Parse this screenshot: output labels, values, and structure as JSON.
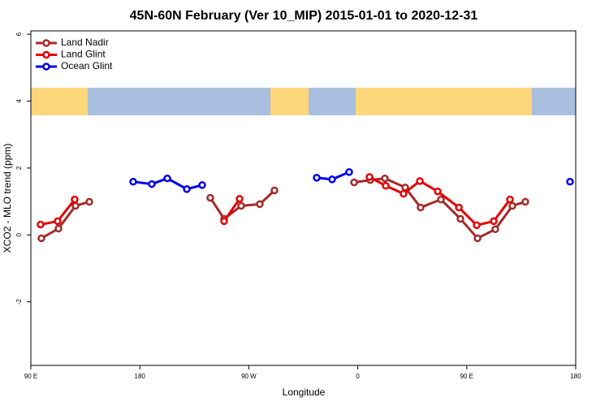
{
  "chart_data": {
    "type": "line",
    "title": "45N-60N February (Ver 10_MIP)   2015-01-01 to 2020-12-31",
    "x_label": "Longitude",
    "y_label": "XCO2 - MLO trend (ppm)",
    "xlim": [
      90,
      540
    ],
    "xticks": [
      {
        "value": 90,
        "label": "90 E"
      },
      {
        "value": 180,
        "label": "180"
      },
      {
        "value": 270,
        "label": "90 W"
      },
      {
        "value": 360,
        "label": "0"
      },
      {
        "value": 450,
        "label": "90 E"
      },
      {
        "value": 540,
        "label": "180"
      }
    ],
    "ylim": [
      -3.9,
      6.1
    ],
    "yticks": [
      -2,
      0,
      2,
      4,
      6
    ],
    "legend": "top-left",
    "series": [
      {
        "name": "Land Nadir",
        "color": "#a52a2a",
        "x": [
          98.7,
          112.8,
          126.9,
          138.3,
          null,
          238.2,
          249.6,
          263.7,
          279.1,
          291.2,
          null,
          357,
          370.3,
          382.4,
          399.2,
          411.9,
          428.7,
          444.8,
          458.9,
          473.6,
          487.7,
          498.4
        ],
        "values": [
          -0.1,
          0.19,
          0.87,
          0.99,
          null,
          1.11,
          0.48,
          0.87,
          0.92,
          1.33,
          null,
          1.57,
          1.64,
          1.69,
          1.42,
          0.82,
          1.06,
          0.48,
          -0.1,
          0.17,
          0.87,
          0.99
        ]
      },
      {
        "name": "Land Glint",
        "color": "#e60000",
        "x": [
          98.0,
          112.1,
          126.2,
          null,
          249.6,
          262.4,
          null,
          369.7,
          383.1,
          397.8,
          411.3,
          426.0,
          443.5,
          458.2,
          472.3,
          485.7
        ],
        "values": [
          0.31,
          0.41,
          1.06,
          null,
          0.41,
          1.08,
          null,
          1.73,
          1.47,
          1.23,
          1.61,
          1.3,
          0.82,
          0.29,
          0.41,
          1.06
        ]
      },
      {
        "name": "Ocean Glint",
        "color": "#0000e6",
        "x": [
          174.5,
          189.9,
          202.7,
          218.8,
          231.5,
          null,
          326.1,
          338.8,
          352.9,
          null,
          535.3
        ],
        "values": [
          1.59,
          1.52,
          1.69,
          1.37,
          1.49,
          null,
          1.71,
          1.66,
          1.88,
          null,
          1.59
        ]
      }
    ]
  }
}
